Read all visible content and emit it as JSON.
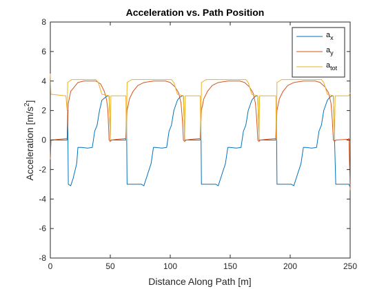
{
  "chart_data": {
    "type": "line",
    "title": "Acceleration vs. Path Position",
    "xlabel": "Distance Along Path [m]",
    "ylabel": {
      "base": "Acceleration [m/s",
      "sup": "2",
      "tail": "]"
    },
    "xlim": [
      0,
      250
    ],
    "ylim": [
      -8,
      8
    ],
    "xticks": [
      0,
      50,
      100,
      150,
      200,
      250
    ],
    "yticks": [
      -8,
      -6,
      -4,
      -2,
      0,
      2,
      4,
      6,
      8
    ],
    "grid": false,
    "legend_position": "top-right",
    "series": [
      {
        "name": "a_x",
        "legend": {
          "main": "a",
          "sub": "x"
        },
        "color": "#0072BD",
        "points": [
          [
            0,
            -1.3
          ],
          [
            0.5,
            0.0
          ],
          [
            14,
            0.0
          ],
          [
            14.5,
            2.0
          ],
          [
            15,
            -3.0
          ],
          [
            17,
            -3.1
          ],
          [
            19,
            -2.6
          ],
          [
            22,
            -1.6
          ],
          [
            23,
            -0.5
          ],
          [
            26,
            -0.5
          ],
          [
            31,
            -0.55
          ],
          [
            35,
            -0.5
          ],
          [
            37,
            0.6
          ],
          [
            39,
            1.0
          ],
          [
            41,
            2.0
          ],
          [
            43,
            2.7
          ],
          [
            46,
            2.9
          ],
          [
            48,
            3.0
          ],
          [
            49,
            3.0
          ],
          [
            50,
            0.0
          ],
          [
            63,
            0.0
          ],
          [
            63.5,
            2.0
          ],
          [
            64,
            -3.0
          ],
          [
            76,
            -3.0
          ],
          [
            78,
            -3.1
          ],
          [
            80,
            -2.6
          ],
          [
            84,
            -1.6
          ],
          [
            86,
            -0.5
          ],
          [
            88,
            -0.5
          ],
          [
            93,
            -0.55
          ],
          [
            97,
            -0.5
          ],
          [
            99,
            0.6
          ],
          [
            101,
            1.0
          ],
          [
            103,
            2.0
          ],
          [
            106,
            2.7
          ],
          [
            108,
            2.9
          ],
          [
            110,
            3.0
          ],
          [
            111,
            3.0
          ],
          [
            112,
            0.0
          ],
          [
            125,
            0.0
          ],
          [
            125.5,
            2.0
          ],
          [
            126,
            -3.0
          ],
          [
            138,
            -3.0
          ],
          [
            140,
            -3.1
          ],
          [
            142,
            -2.6
          ],
          [
            146,
            -1.6
          ],
          [
            148,
            -0.5
          ],
          [
            150,
            -0.5
          ],
          [
            155,
            -0.55
          ],
          [
            159,
            -0.5
          ],
          [
            161,
            0.6
          ],
          [
            163,
            1.0
          ],
          [
            165,
            2.0
          ],
          [
            168,
            2.7
          ],
          [
            170,
            2.9
          ],
          [
            172,
            3.0
          ],
          [
            173,
            3.0
          ],
          [
            174,
            0.0
          ],
          [
            188,
            0.0
          ],
          [
            188.5,
            2.0
          ],
          [
            189,
            -3.0
          ],
          [
            201,
            -3.0
          ],
          [
            203,
            -3.1
          ],
          [
            205,
            -2.6
          ],
          [
            209,
            -1.6
          ],
          [
            211,
            -0.5
          ],
          [
            213,
            -0.5
          ],
          [
            218,
            -0.55
          ],
          [
            222,
            -0.5
          ],
          [
            224,
            0.6
          ],
          [
            226,
            1.0
          ],
          [
            228,
            2.0
          ],
          [
            231,
            2.7
          ],
          [
            233,
            2.9
          ],
          [
            235,
            3.0
          ],
          [
            236,
            3.0
          ],
          [
            237,
            0.0
          ],
          [
            238,
            -3.0
          ],
          [
            248,
            -3.0
          ],
          [
            249,
            -3.0
          ],
          [
            250,
            -3.2
          ]
        ]
      },
      {
        "name": "a_y",
        "legend": {
          "main": "a",
          "sub": "y"
        },
        "color": "#D95319",
        "points": [
          [
            0,
            -1.3
          ],
          [
            0.5,
            0.0
          ],
          [
            14,
            0.1
          ],
          [
            15,
            2.5
          ],
          [
            17,
            3.3
          ],
          [
            20,
            3.6
          ],
          [
            23,
            3.9
          ],
          [
            28,
            4.0
          ],
          [
            38,
            4.0
          ],
          [
            42,
            3.8
          ],
          [
            45,
            3.3
          ],
          [
            47,
            2.7
          ],
          [
            48,
            2.0
          ],
          [
            49,
            0.0
          ],
          [
            50,
            -0.1
          ],
          [
            51,
            0.0
          ],
          [
            56,
            0.05
          ],
          [
            63,
            0.1
          ],
          [
            64,
            2.0
          ],
          [
            66,
            2.8
          ],
          [
            69,
            3.3
          ],
          [
            73,
            3.7
          ],
          [
            78,
            3.9
          ],
          [
            86,
            4.0
          ],
          [
            96,
            4.0
          ],
          [
            100,
            3.9
          ],
          [
            104,
            3.6
          ],
          [
            107,
            3.2
          ],
          [
            109,
            2.5
          ],
          [
            110,
            1.5
          ],
          [
            111,
            0.0
          ],
          [
            112,
            -0.1
          ],
          [
            113,
            0.0
          ],
          [
            118,
            0.05
          ],
          [
            125,
            0.1
          ],
          [
            126,
            2.0
          ],
          [
            128,
            2.8
          ],
          [
            131,
            3.3
          ],
          [
            135,
            3.7
          ],
          [
            140,
            3.9
          ],
          [
            148,
            4.0
          ],
          [
            158,
            4.0
          ],
          [
            162,
            3.9
          ],
          [
            166,
            3.6
          ],
          [
            169,
            3.2
          ],
          [
            171,
            2.5
          ],
          [
            172,
            1.5
          ],
          [
            173,
            0.0
          ],
          [
            174,
            -0.1
          ],
          [
            175,
            0.0
          ],
          [
            181,
            0.05
          ],
          [
            188,
            0.1
          ],
          [
            189,
            2.0
          ],
          [
            191,
            2.8
          ],
          [
            194,
            3.3
          ],
          [
            198,
            3.7
          ],
          [
            203,
            3.9
          ],
          [
            211,
            4.0
          ],
          [
            221,
            4.0
          ],
          [
            225,
            3.9
          ],
          [
            229,
            3.6
          ],
          [
            232,
            3.2
          ],
          [
            234,
            2.5
          ],
          [
            235,
            1.5
          ],
          [
            236,
            0.0
          ],
          [
            237,
            -0.1
          ],
          [
            238,
            0.0
          ],
          [
            248,
            0.05
          ],
          [
            249,
            0.1
          ],
          [
            250,
            -3.4
          ]
        ]
      },
      {
        "name": "a_tot",
        "legend": {
          "main": "a",
          "sub": "tot"
        },
        "color": "#EDB120",
        "points": [
          [
            0,
            4.5
          ],
          [
            0.5,
            3.1
          ],
          [
            13,
            3.0
          ],
          [
            14,
            2.0
          ],
          [
            14.5,
            3.9
          ],
          [
            16,
            4.0
          ],
          [
            18,
            4.1
          ],
          [
            38,
            4.1
          ],
          [
            40,
            3.9
          ],
          [
            43,
            3.1
          ],
          [
            49,
            3.0
          ],
          [
            50,
            0.0
          ],
          [
            50.5,
            3.0
          ],
          [
            63,
            3.0
          ],
          [
            63.5,
            0.0
          ],
          [
            64,
            3.9
          ],
          [
            66,
            4.0
          ],
          [
            68,
            4.1
          ],
          [
            101,
            4.1
          ],
          [
            103,
            3.9
          ],
          [
            106,
            3.1
          ],
          [
            111,
            3.0
          ],
          [
            112,
            0.0
          ],
          [
            112.5,
            3.0
          ],
          [
            125,
            3.0
          ],
          [
            125.5,
            0.0
          ],
          [
            126,
            3.9
          ],
          [
            128,
            4.0
          ],
          [
            130,
            4.1
          ],
          [
            163,
            4.1
          ],
          [
            165,
            3.9
          ],
          [
            168,
            3.1
          ],
          [
            173,
            3.0
          ],
          [
            174,
            0.0
          ],
          [
            174.5,
            3.0
          ],
          [
            188,
            3.0
          ],
          [
            188.5,
            0.0
          ],
          [
            189,
            3.9
          ],
          [
            191,
            4.0
          ],
          [
            193,
            4.1
          ],
          [
            226,
            4.1
          ],
          [
            228,
            3.9
          ],
          [
            231,
            3.1
          ],
          [
            236,
            3.0
          ],
          [
            237,
            0.0
          ],
          [
            237.5,
            3.0
          ],
          [
            249,
            3.0
          ],
          [
            250,
            3.2
          ]
        ]
      }
    ]
  }
}
